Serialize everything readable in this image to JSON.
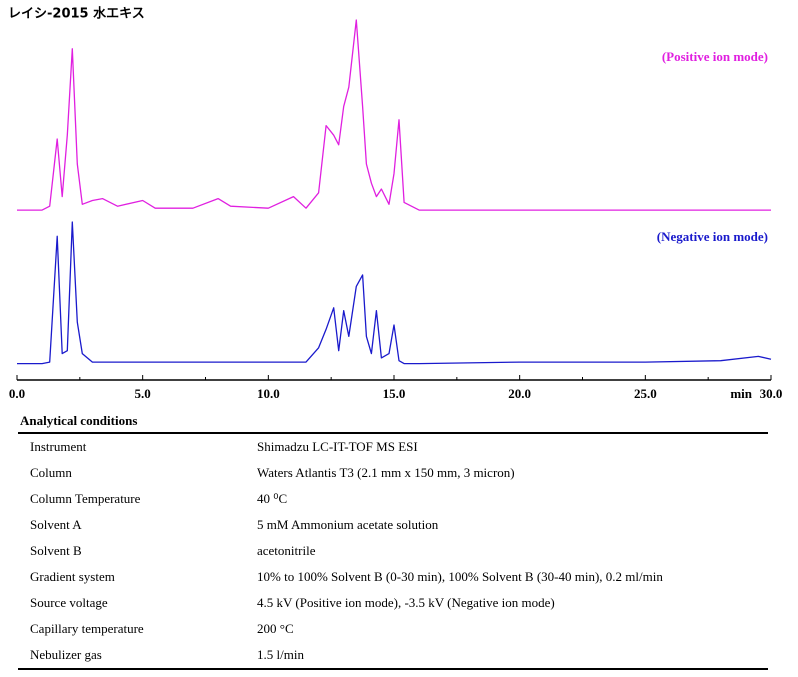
{
  "chart_data": {
    "type": "line",
    "title": "レイシ-2015 水エキス",
    "x_label": "min",
    "xlim": [
      0,
      30
    ],
    "xticks": [
      {
        "value": 0,
        "label": "0.0"
      },
      {
        "value": 5,
        "label": "5.0"
      },
      {
        "value": 10,
        "label": "10.0"
      },
      {
        "value": 15,
        "label": "15.0"
      },
      {
        "value": 20,
        "label": "20.0"
      },
      {
        "value": 25,
        "label": "25.0"
      },
      {
        "value": 30,
        "label": "30.0"
      }
    ],
    "ylim": [
      0,
      100
    ],
    "x": [
      0,
      1.0,
      1.3,
      1.6,
      1.8,
      2.0,
      2.2,
      2.4,
      2.6,
      3.0,
      3.4,
      4.0,
      5.0,
      5.5,
      7.0,
      8.0,
      8.5,
      10.0,
      11.0,
      11.5,
      12.0,
      12.3,
      12.6,
      12.8,
      13.0,
      13.2,
      13.5,
      13.75,
      13.9,
      14.1,
      14.3,
      14.5,
      14.8,
      15.0,
      15.2,
      15.4,
      16.0,
      20.0,
      25.0,
      28.0,
      29.5,
      30.0
    ],
    "series": [
      {
        "name": "(Positive ion mode)",
        "color": "#e020e0",
        "values": [
          1,
          1,
          3,
          38,
          8,
          40,
          85,
          25,
          4,
          6,
          7,
          3,
          6,
          2,
          2,
          7,
          3,
          2,
          8,
          2,
          10,
          45,
          40,
          35,
          55,
          65,
          100,
          55,
          25,
          15,
          8,
          12,
          4,
          20,
          48,
          5,
          1,
          1,
          1,
          1,
          1,
          1
        ]
      },
      {
        "name": "(Negative ion mode)",
        "color": "#1a1acc",
        "values": [
          1,
          1,
          2,
          90,
          8,
          10,
          100,
          30,
          8,
          2,
          2,
          2,
          2,
          2,
          2,
          2,
          2,
          2,
          2,
          2,
          12,
          25,
          40,
          10,
          38,
          20,
          55,
          63,
          20,
          8,
          38,
          5,
          8,
          28,
          3,
          1,
          1,
          2,
          2,
          3,
          6,
          4
        ]
      }
    ]
  },
  "table": {
    "title": "Analytical conditions",
    "rows": [
      [
        "Instrument",
        "Shimadzu LC-IT-TOF MS ESI"
      ],
      [
        "Column",
        "Waters Atlantis T3 (2.1 mm x 150 mm, 3 micron)"
      ],
      [
        "Column Temperature",
        "40 ⁰C"
      ],
      [
        "Solvent A",
        "5 mM Ammonium acetate solution"
      ],
      [
        "Solvent B",
        "acetonitrile"
      ],
      [
        "Gradient system",
        "10% to 100% Solvent B (0-30 min), 100% Solvent B (30-40 min), 0.2 ml/min"
      ],
      [
        "Source voltage",
        "4.5 kV (Positive ion mode), -3.5 kV (Negative ion mode)"
      ],
      [
        "Capillary temperature",
        "200 °C"
      ],
      [
        "Nebulizer gas",
        "1.5 l/min"
      ]
    ]
  }
}
